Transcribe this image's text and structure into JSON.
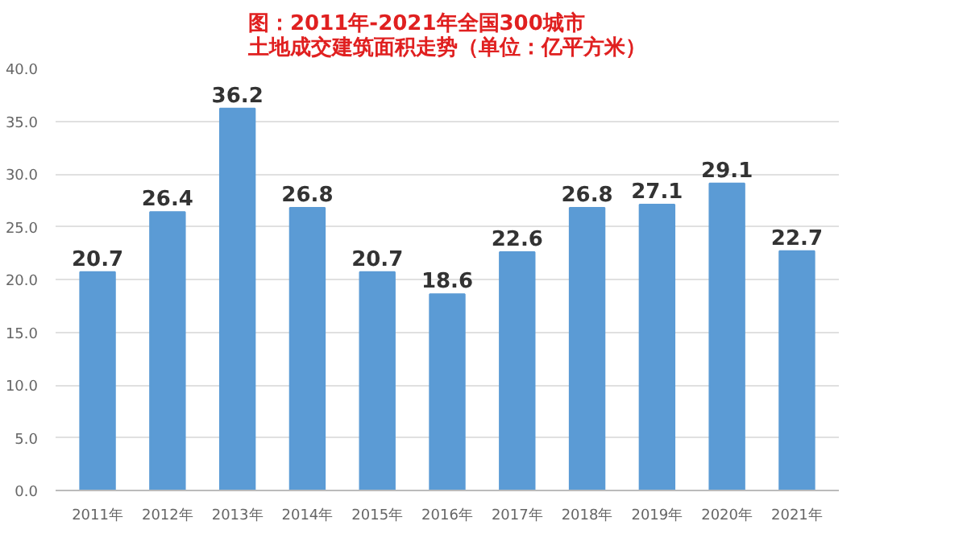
{
  "chart_data": {
    "type": "bar",
    "title": "图：2011年-2021年全国300城市",
    "subtitle": "土地成交建筑面积走势（单位：亿平方米）",
    "categories": [
      "2011年",
      "2012年",
      "2013年",
      "2014年",
      "2015年",
      "2016年",
      "2017年",
      "2018年",
      "2019年",
      "2020年",
      "2021年"
    ],
    "values": [
      20.7,
      26.4,
      36.2,
      26.8,
      20.7,
      18.6,
      22.6,
      26.8,
      27.1,
      29.1,
      22.7
    ],
    "color": "#5b9bd5",
    "ylim": [
      0,
      40
    ],
    "yticks": [
      {
        "value": 0,
        "label": "0.0"
      },
      {
        "value": 5,
        "label": "5.0"
      },
      {
        "value": 10,
        "label": "10.0"
      },
      {
        "value": 15,
        "label": "15.0"
      },
      {
        "value": 20,
        "label": "20.0"
      },
      {
        "value": 25,
        "label": "25.0"
      },
      {
        "value": 30,
        "label": "30.0"
      },
      {
        "value": 35,
        "label": "35.0"
      },
      {
        "value": 40,
        "label": "40.0"
      }
    ],
    "grid": "y",
    "data_labels": true
  }
}
